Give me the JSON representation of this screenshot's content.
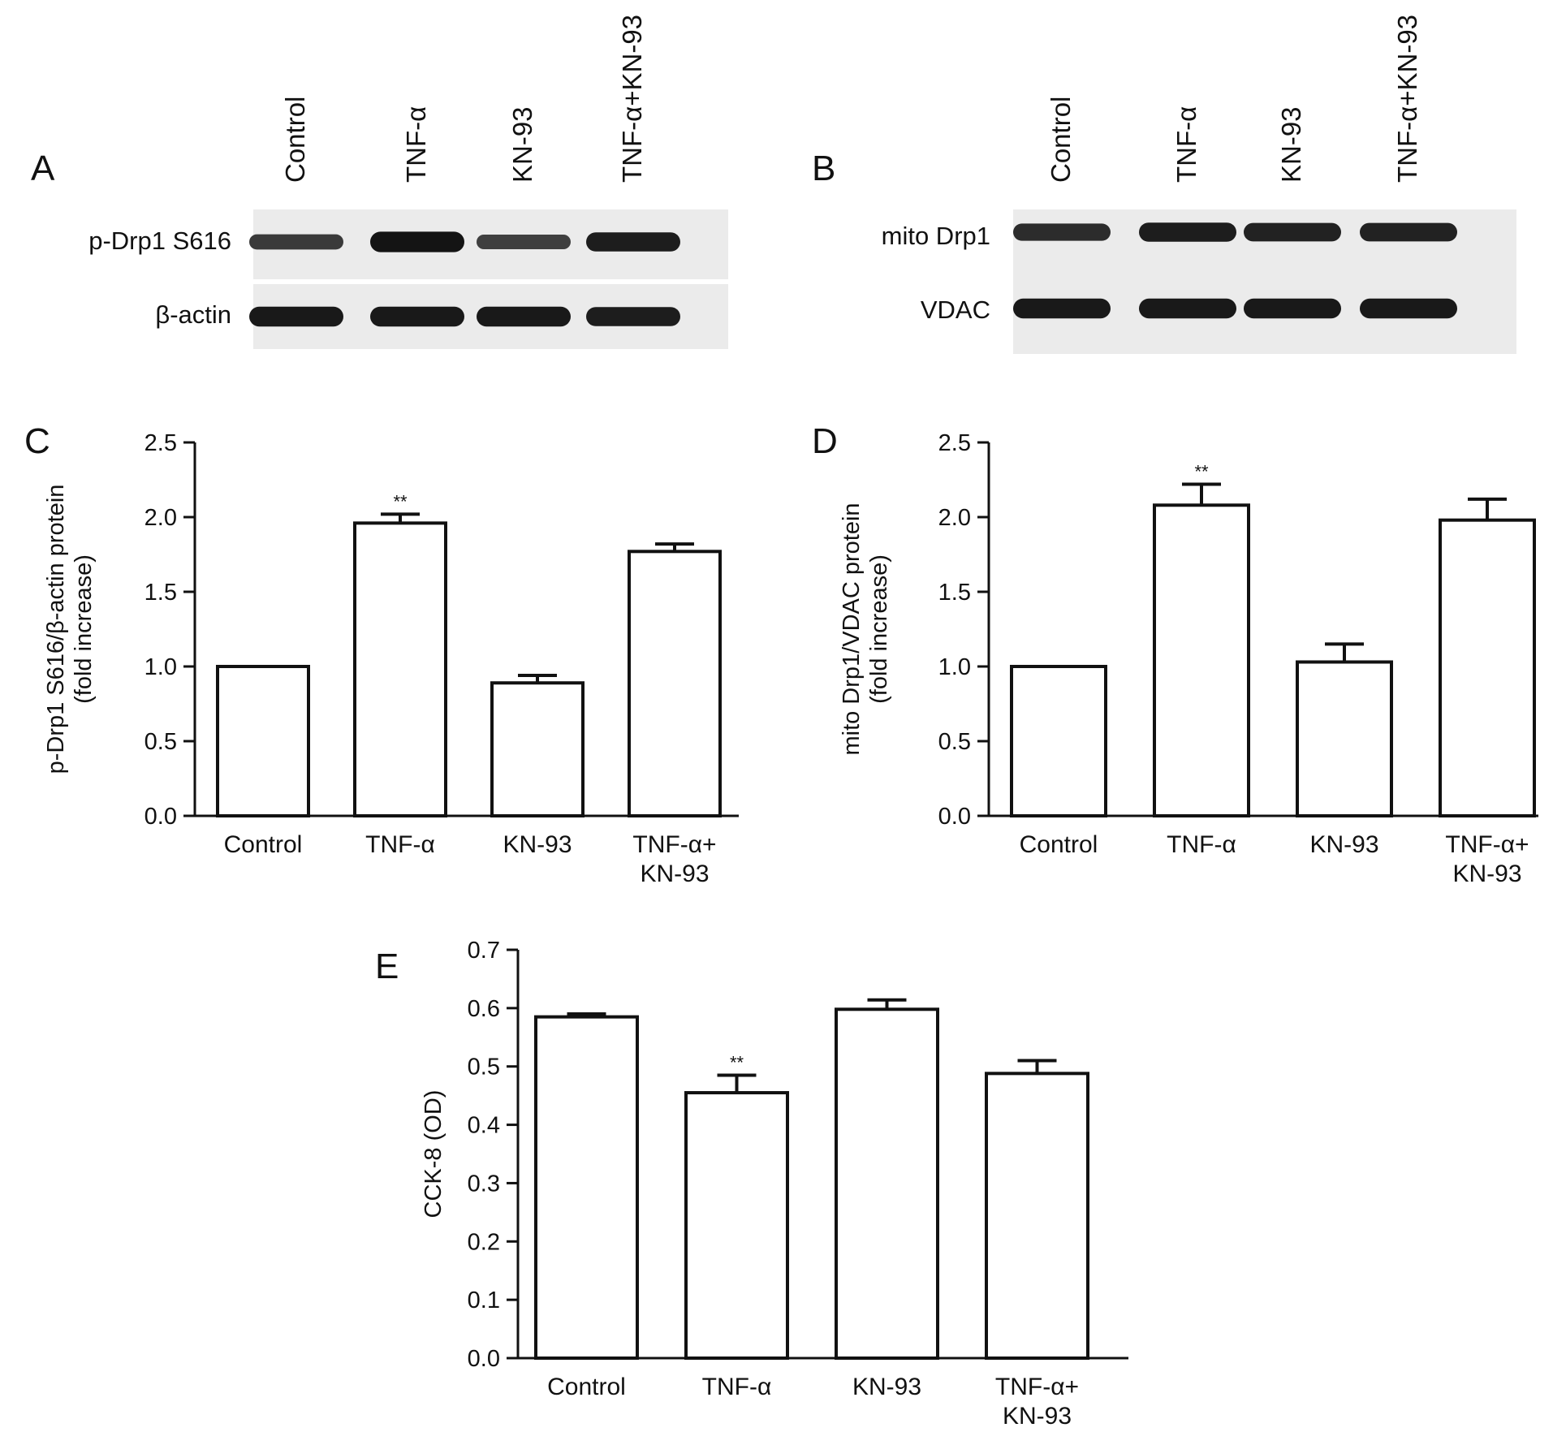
{
  "blots": [
    {
      "letter": "A",
      "lanes": [
        "Control",
        "TNF-α",
        "KN-93",
        "TNF-α+KN-93"
      ],
      "bands": [
        {
          "label": "p-Drp1 S616",
          "intensities": [
            0.55,
            0.95,
            0.5,
            0.85
          ]
        },
        {
          "label": "β-actin",
          "intensities": [
            0.9,
            0.9,
            0.9,
            0.85
          ]
        }
      ]
    },
    {
      "letter": "B",
      "lanes": [
        "Control",
        "TNF-α",
        "KN-93",
        "TNF-α+KN-93"
      ],
      "bands": [
        {
          "label": "mito Drp1",
          "intensities": [
            0.7,
            0.85,
            0.8,
            0.8
          ]
        },
        {
          "label": "VDAC",
          "intensities": [
            0.9,
            0.9,
            0.9,
            0.9
          ]
        }
      ]
    }
  ],
  "chart_data": [
    {
      "letter": "C",
      "type": "bar",
      "ylabel_lines": [
        "p-Drp1 S616/β-actin protein",
        "(fold increase)"
      ],
      "ylim": [
        0,
        2.5
      ],
      "yticks": [
        "0.0",
        "0.5",
        "1.0",
        "1.5",
        "2.0",
        "2.5"
      ],
      "categories": [
        [
          "Control"
        ],
        [
          "TNF-α"
        ],
        [
          "KN-93"
        ],
        [
          "TNF-α+",
          "KN-93"
        ]
      ],
      "values": [
        1.0,
        1.96,
        0.89,
        1.77
      ],
      "errors": [
        0.0,
        0.06,
        0.05,
        0.05
      ],
      "significance": [
        "",
        "**",
        "",
        ""
      ]
    },
    {
      "letter": "D",
      "type": "bar",
      "ylabel_lines": [
        "mito Drp1/VDAC protein",
        "(fold increase)"
      ],
      "ylim": [
        0,
        2.5
      ],
      "yticks": [
        "0.0",
        "0.5",
        "1.0",
        "1.5",
        "2.0",
        "2.5"
      ],
      "categories": [
        [
          "Control"
        ],
        [
          "TNF-α"
        ],
        [
          "KN-93"
        ],
        [
          "TNF-α+",
          "KN-93"
        ]
      ],
      "values": [
        1.0,
        2.08,
        1.03,
        1.98
      ],
      "errors": [
        0.0,
        0.14,
        0.12,
        0.14
      ],
      "significance": [
        "",
        "**",
        "",
        ""
      ]
    },
    {
      "letter": "E",
      "type": "bar",
      "ylabel_lines": [
        "CCK-8 (OD)"
      ],
      "ylim": [
        0,
        0.7
      ],
      "yticks": [
        "0.0",
        "0.1",
        "0.2",
        "0.3",
        "0.4",
        "0.5",
        "0.6",
        "0.7"
      ],
      "categories": [
        [
          "Control"
        ],
        [
          "TNF-α"
        ],
        [
          "KN-93"
        ],
        [
          "TNF-α+",
          "KN-93"
        ]
      ],
      "values": [
        0.585,
        0.455,
        0.598,
        0.488
      ],
      "errors": [
        0.005,
        0.03,
        0.016,
        0.022
      ],
      "significance": [
        "",
        "**",
        "",
        ""
      ]
    }
  ]
}
